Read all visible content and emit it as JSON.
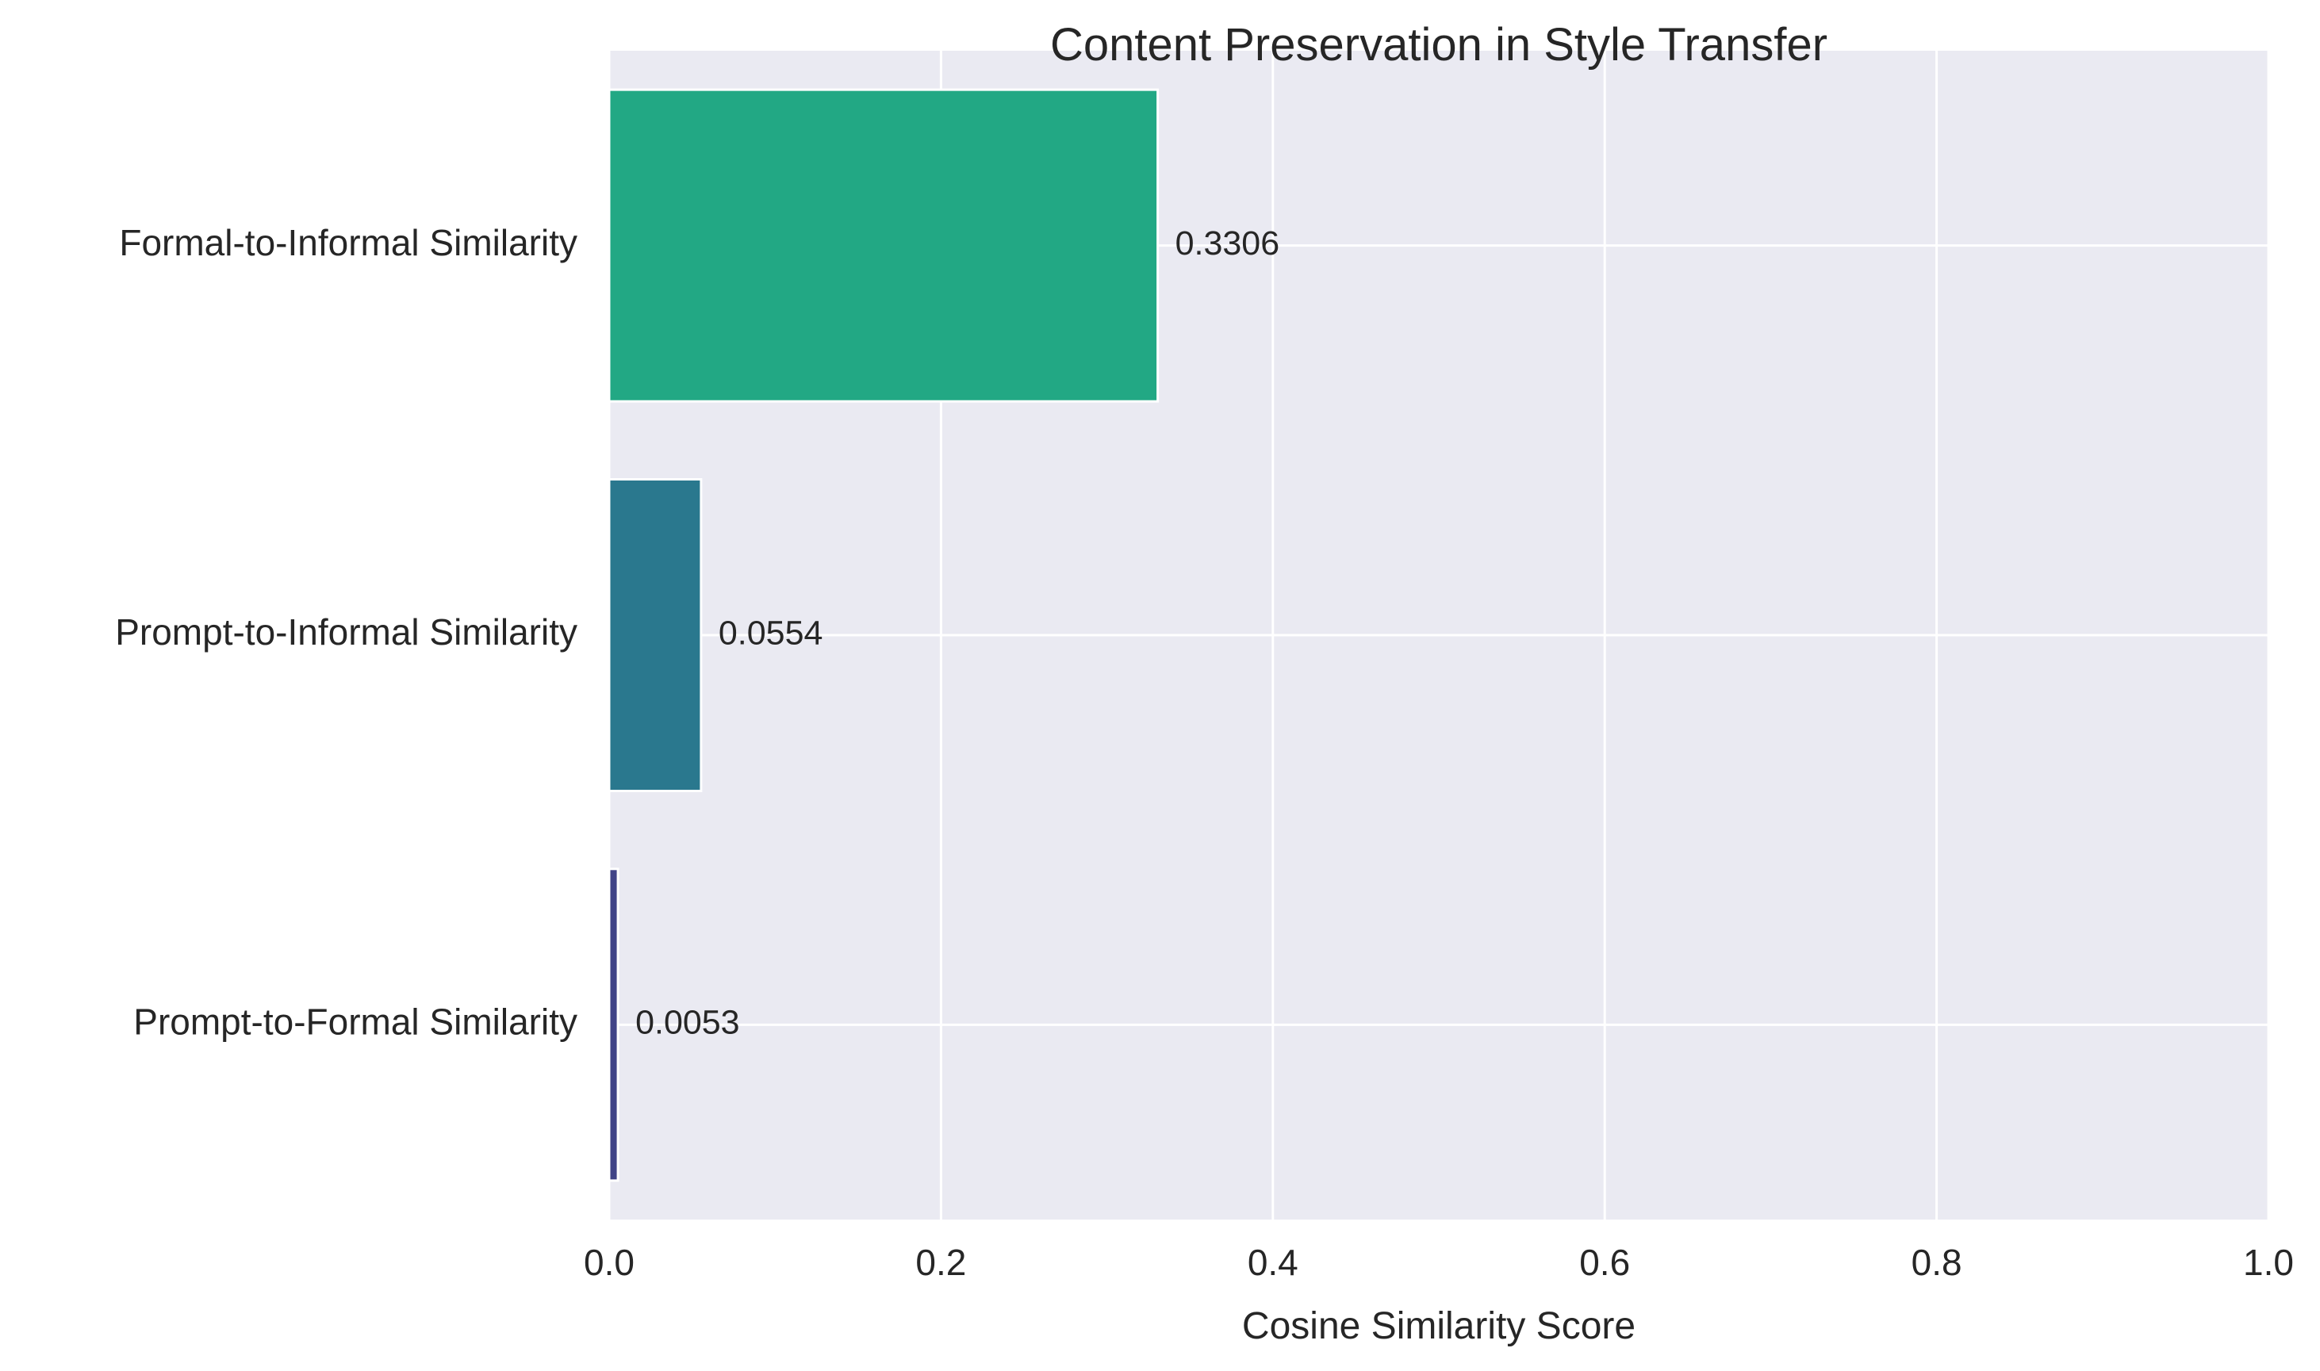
{
  "chart_data": {
    "type": "bar",
    "orientation": "horizontal",
    "title": "Content Preservation in Style Transfer",
    "xlabel": "Cosine Similarity Score",
    "ylabel": "",
    "xlim": [
      0,
      1
    ],
    "xticks": [
      "0.0",
      "0.2",
      "0.4",
      "0.6",
      "0.8",
      "1.0"
    ],
    "categories": [
      "Prompt-to-Formal Similarity",
      "Prompt-to-Informal Similarity",
      "Formal-to-Informal Similarity"
    ],
    "values": [
      0.0053,
      0.0554,
      0.3306
    ],
    "value_labels": [
      "0.0053",
      "0.0554",
      "0.3306"
    ],
    "colors": [
      "#414487",
      "#2a788e",
      "#22a884"
    ],
    "grid": true,
    "background": "#eaeaf2",
    "grid_color": "#ffffff"
  }
}
